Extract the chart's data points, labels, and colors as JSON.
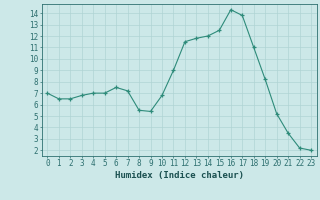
{
  "x": [
    0,
    1,
    2,
    3,
    4,
    5,
    6,
    7,
    8,
    9,
    10,
    11,
    12,
    13,
    14,
    15,
    16,
    17,
    18,
    19,
    20,
    21,
    22,
    23
  ],
  "y": [
    7.0,
    6.5,
    6.5,
    6.8,
    7.0,
    7.0,
    7.5,
    7.2,
    5.5,
    5.4,
    6.8,
    9.0,
    11.5,
    11.8,
    12.0,
    12.5,
    14.3,
    13.8,
    11.0,
    8.2,
    5.2,
    3.5,
    2.2,
    2.0
  ],
  "line_color": "#2e8b7a",
  "marker": "+",
  "marker_color": "#2e8b7a",
  "bg_color": "#cce8e8",
  "grid_color": "#b0d4d4",
  "axis_color": "#2e7070",
  "tick_label_color": "#1a5050",
  "xlabel": "Humidex (Indice chaleur)",
  "xlim": [
    -0.5,
    23.5
  ],
  "ylim": [
    1.5,
    14.8
  ],
  "yticks": [
    2,
    3,
    4,
    5,
    6,
    7,
    8,
    9,
    10,
    11,
    12,
    13,
    14
  ],
  "xticks": [
    0,
    1,
    2,
    3,
    4,
    5,
    6,
    7,
    8,
    9,
    10,
    11,
    12,
    13,
    14,
    15,
    16,
    17,
    18,
    19,
    20,
    21,
    22,
    23
  ],
  "label_fontsize": 6.5,
  "tick_fontsize": 5.5
}
